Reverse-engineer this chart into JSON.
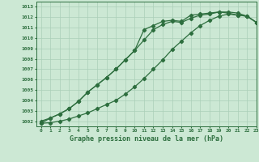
{
  "title": "Graphe pression niveau de la mer (hPa)",
  "bg_color": "#cce8d4",
  "grid_color": "#aacfb8",
  "line_color": "#2d6e3e",
  "marker": "D",
  "markersize": 2.2,
  "linewidth": 0.9,
  "xlim": [
    -0.5,
    23
  ],
  "ylim": [
    1001.5,
    1013.5
  ],
  "yticks": [
    1002,
    1003,
    1004,
    1005,
    1006,
    1007,
    1008,
    1009,
    1010,
    1011,
    1012,
    1013
  ],
  "xticks": [
    0,
    1,
    2,
    3,
    4,
    5,
    6,
    7,
    8,
    9,
    10,
    11,
    12,
    13,
    14,
    15,
    16,
    17,
    18,
    19,
    20,
    21,
    22,
    23
  ],
  "series1": [
    1002.0,
    1002.3,
    1002.7,
    1003.2,
    1003.9,
    1004.8,
    1005.5,
    1006.2,
    1007.0,
    1007.9,
    1008.8,
    1010.8,
    1011.2,
    1011.6,
    1011.7,
    1011.6,
    1012.2,
    1012.3,
    1012.4,
    1012.5,
    1012.4,
    1012.2,
    1012.1,
    1011.5
  ],
  "series2": [
    1001.8,
    1002.3,
    1002.7,
    1003.2,
    1003.9,
    1004.8,
    1005.5,
    1006.2,
    1007.0,
    1007.9,
    1008.8,
    1009.8,
    1010.8,
    1011.3,
    1011.6,
    1011.5,
    1011.9,
    1012.2,
    1012.3,
    1012.5,
    1012.5,
    1012.4,
    1012.1,
    1011.5
  ],
  "series3": [
    1001.8,
    1001.85,
    1002.0,
    1002.2,
    1002.5,
    1002.8,
    1003.2,
    1003.6,
    1004.0,
    1004.6,
    1005.3,
    1006.1,
    1007.0,
    1007.9,
    1008.9,
    1009.7,
    1010.5,
    1011.2,
    1011.7,
    1012.1,
    1012.3,
    1012.2,
    1012.1,
    1011.5
  ]
}
